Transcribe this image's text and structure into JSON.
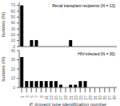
{
  "chart_data": [
    {
      "type": "bar",
      "annotations": [
        "Renal transplant recipients (N = 13)"
      ],
      "ylabel": "Isolates (%)",
      "categories": [
        "1",
        "3",
        "5",
        "7",
        "9",
        "11",
        "13",
        "15",
        "17",
        "19",
        "21",
        "23",
        "25",
        "27",
        "29",
        "31",
        "33",
        "35",
        "37",
        "39"
      ],
      "values": [
        70,
        0,
        11,
        11,
        0,
        0,
        0,
        0,
        0,
        0,
        11,
        0,
        0,
        0,
        0,
        0,
        0,
        0,
        0,
        0
      ],
      "color": "#000000",
      "ylim": [
        0,
        75
      ],
      "yticks": [
        0,
        10,
        20,
        30,
        40,
        50,
        60,
        70
      ],
      "tick_labels": "y"
    },
    {
      "type": "bar",
      "annotations": [
        "HIV-infected (N = 30)"
      ],
      "ylabel": "Isolates (%)",
      "xlabel": "P. jirovecii type identification number",
      "categories": [
        "1",
        "3",
        "5",
        "7",
        "9",
        "11",
        "13",
        "15",
        "17",
        "19",
        "21",
        "23",
        "25",
        "27",
        "29",
        "31",
        "33",
        "35",
        "37",
        "39"
      ],
      "values": [
        33,
        7,
        7,
        7,
        7,
        7,
        7,
        7,
        3,
        0,
        3,
        3,
        7,
        7,
        0,
        0,
        0,
        0,
        0,
        0
      ],
      "color": "#000000",
      "ylim": [
        0,
        40
      ],
      "yticks": [
        0,
        10,
        20,
        30,
        40
      ]
    }
  ]
}
